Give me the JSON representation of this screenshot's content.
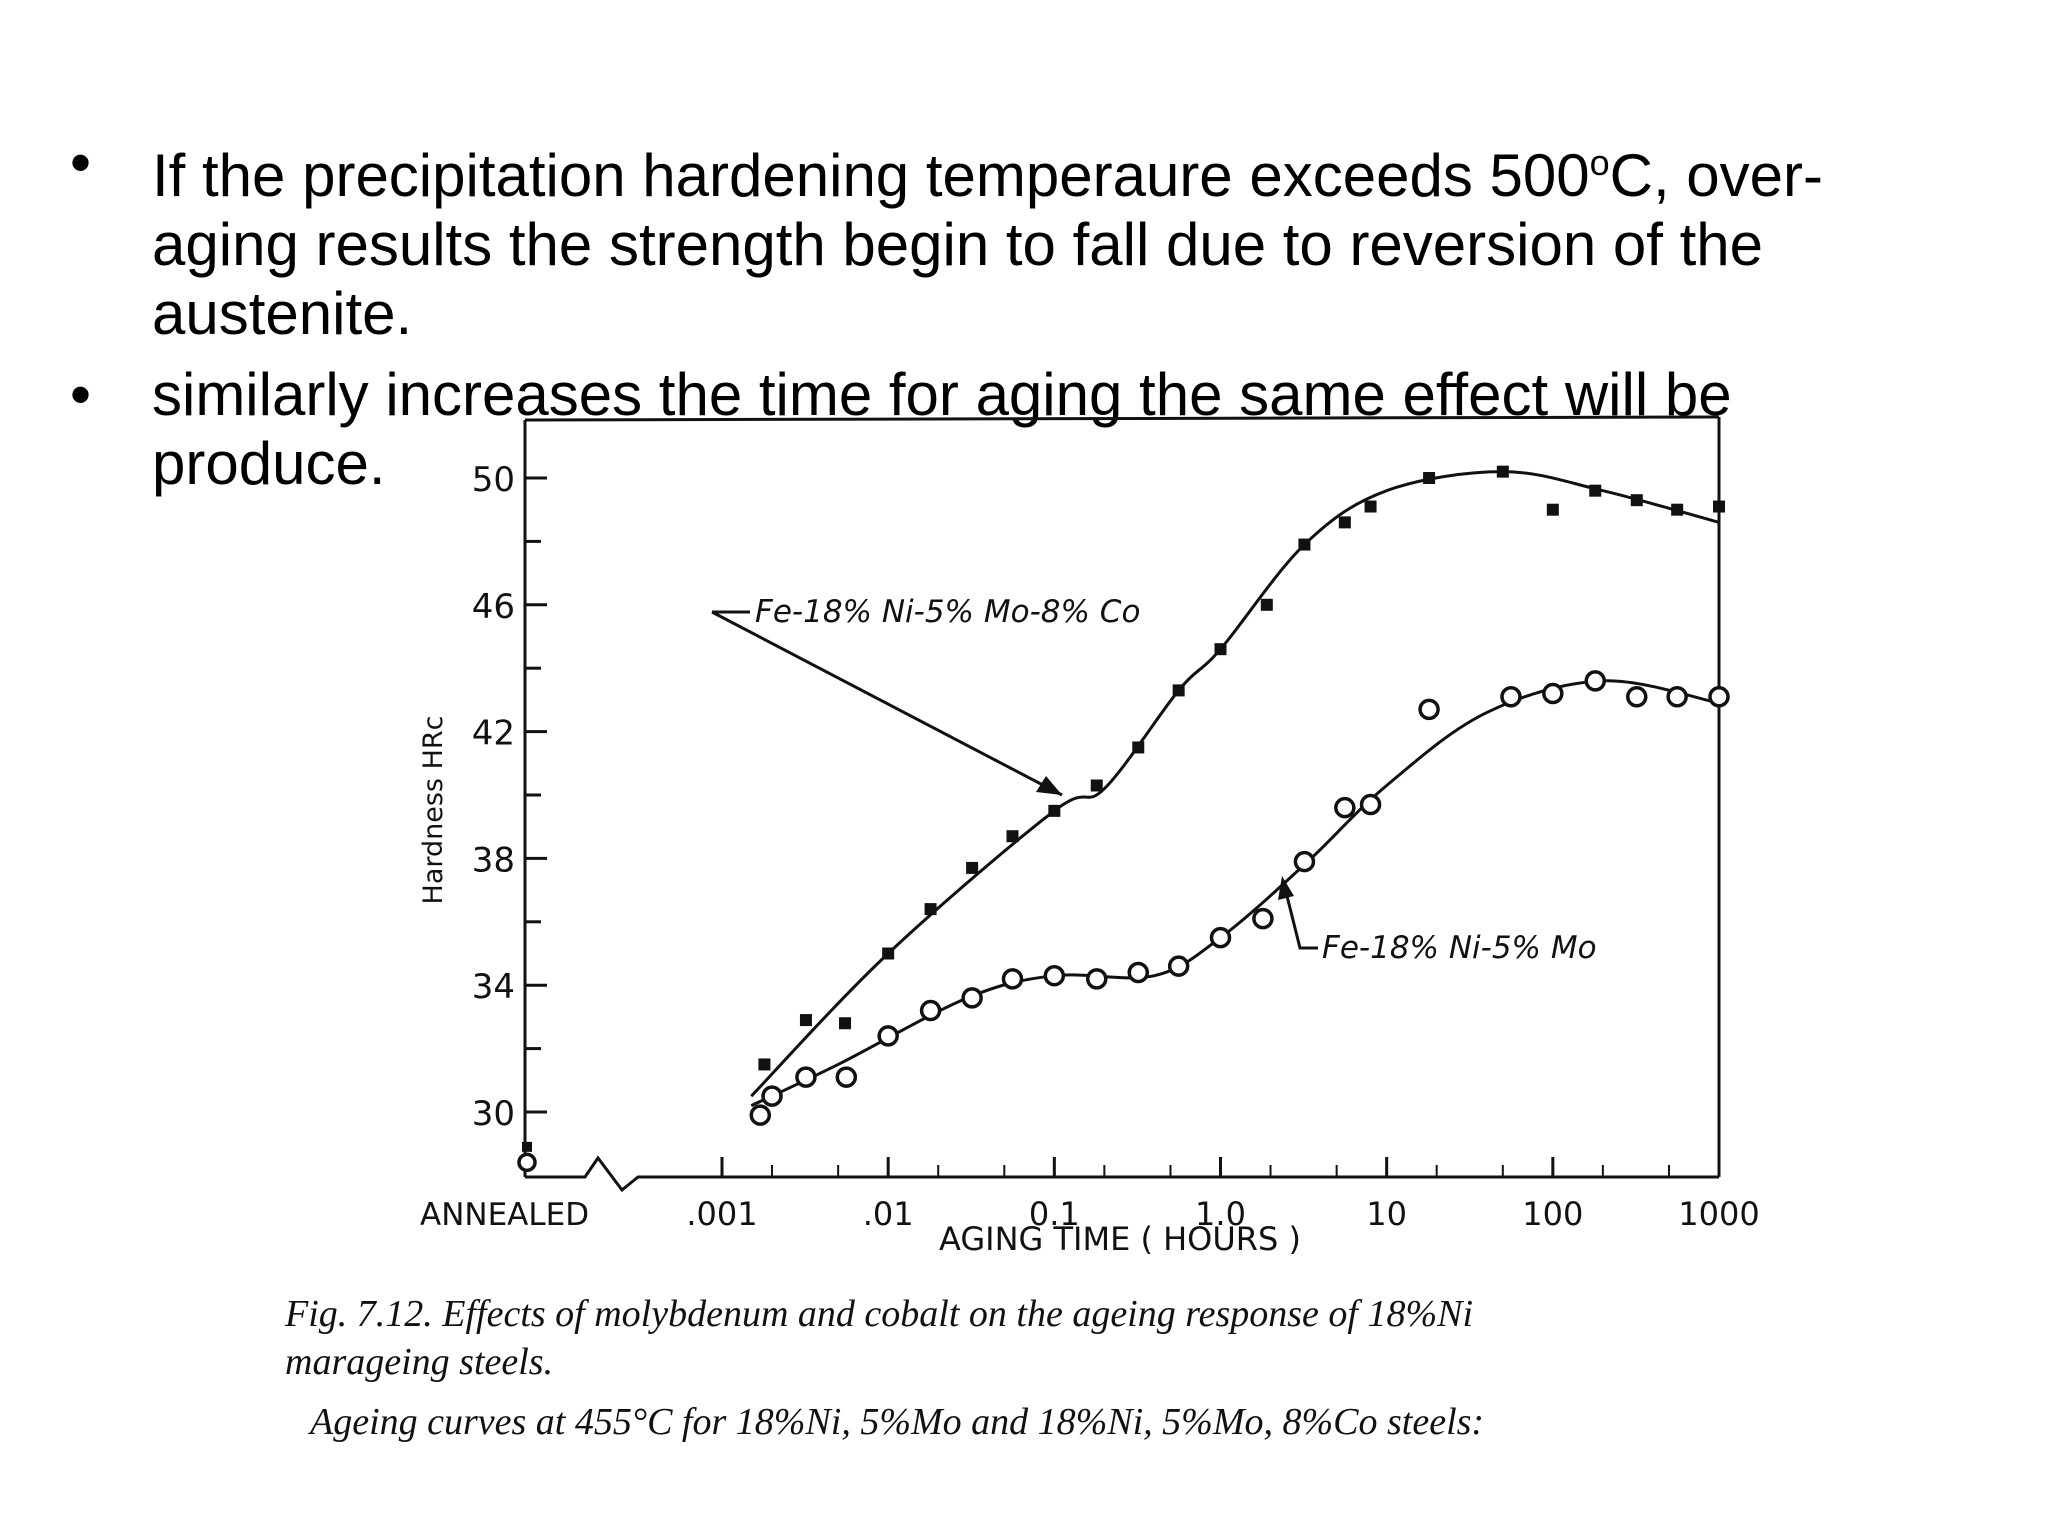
{
  "bullets": [
    {
      "text_pre": "If the precipitation hardening temperaure exceeds 500",
      "sup": "o",
      "text_post": "C, over-aging results the strength begin to fall due to reversion of the austenite."
    },
    {
      "text": "similarly  increases the time for aging  the same effect will be produce."
    }
  ],
  "chart_data": {
    "type": "line",
    "title": "",
    "xlabel": "AGING   TIME   ( HOURS )",
    "ylabel": "Hardness HRc",
    "x_scale": "log",
    "xlim": [
      0.001,
      1000
    ],
    "ylim": [
      28,
      51
    ],
    "x_ticks": [
      ".001",
      ".01",
      "0.1",
      "1.0",
      "10",
      "100",
      "1000"
    ],
    "x_break_label": "ANNEALED",
    "y_ticks": [
      "30",
      "34",
      "38",
      "42",
      "46",
      "50"
    ],
    "annealed_points": [
      {
        "series": "Fe-18%Ni-5%Mo-8%Co",
        "y": 28.9
      },
      {
        "series": "Fe-18%Ni-5%Mo",
        "y": 28.6
      }
    ],
    "series": [
      {
        "name": "Fe-18%Ni-5%Mo-8%Co",
        "marker": "filled-square",
        "x": [
          0.0018,
          0.0032,
          0.0055,
          0.01,
          0.018,
          0.032,
          0.056,
          0.1,
          0.18,
          0.32,
          0.56,
          1.0,
          1.9,
          3.2,
          5.6,
          8,
          18,
          50,
          100,
          180,
          320,
          560,
          1000
        ],
        "y": [
          31.5,
          32.9,
          32.8,
          35,
          36.4,
          37.7,
          38.7,
          39.5,
          40.3,
          41.5,
          43.3,
          44.6,
          46,
          47.9,
          48.6,
          49.1,
          50,
          50.2,
          49,
          49.6,
          49.3,
          49,
          49.1
        ]
      },
      {
        "name": "Fe-18%Ni-5%Mo",
        "marker": "open-circle",
        "x": [
          0.0017,
          0.002,
          0.0032,
          0.0056,
          0.01,
          0.018,
          0.032,
          0.056,
          0.1,
          0.18,
          0.32,
          0.56,
          1.0,
          1.8,
          3.2,
          5.6,
          8,
          18,
          56,
          100,
          180,
          320,
          560,
          1000
        ],
        "y": [
          29.9,
          30.5,
          31.1,
          31.1,
          32.4,
          33.2,
          33.6,
          34.2,
          34.3,
          34.2,
          34.4,
          34.6,
          35.5,
          36.1,
          37.9,
          39.6,
          39.7,
          42.7,
          43.1,
          43.2,
          43.6,
          43.1,
          43.1,
          43.1
        ]
      }
    ],
    "annotations": [
      "Fe-18% Ni-5% Mo-8% Co",
      "Fe-18% Ni-5% Mo"
    ],
    "grid": false
  },
  "caption": {
    "line1": "Fig. 7.12.   Effects of molybdenum and cobalt on the ageing response of 18%Ni",
    "line2": "marageing steels.",
    "line3": "Ageing curves at 455°C for 18%Ni, 5%Mo and 18%Ni, 5%Mo, 8%Co steels:"
  }
}
